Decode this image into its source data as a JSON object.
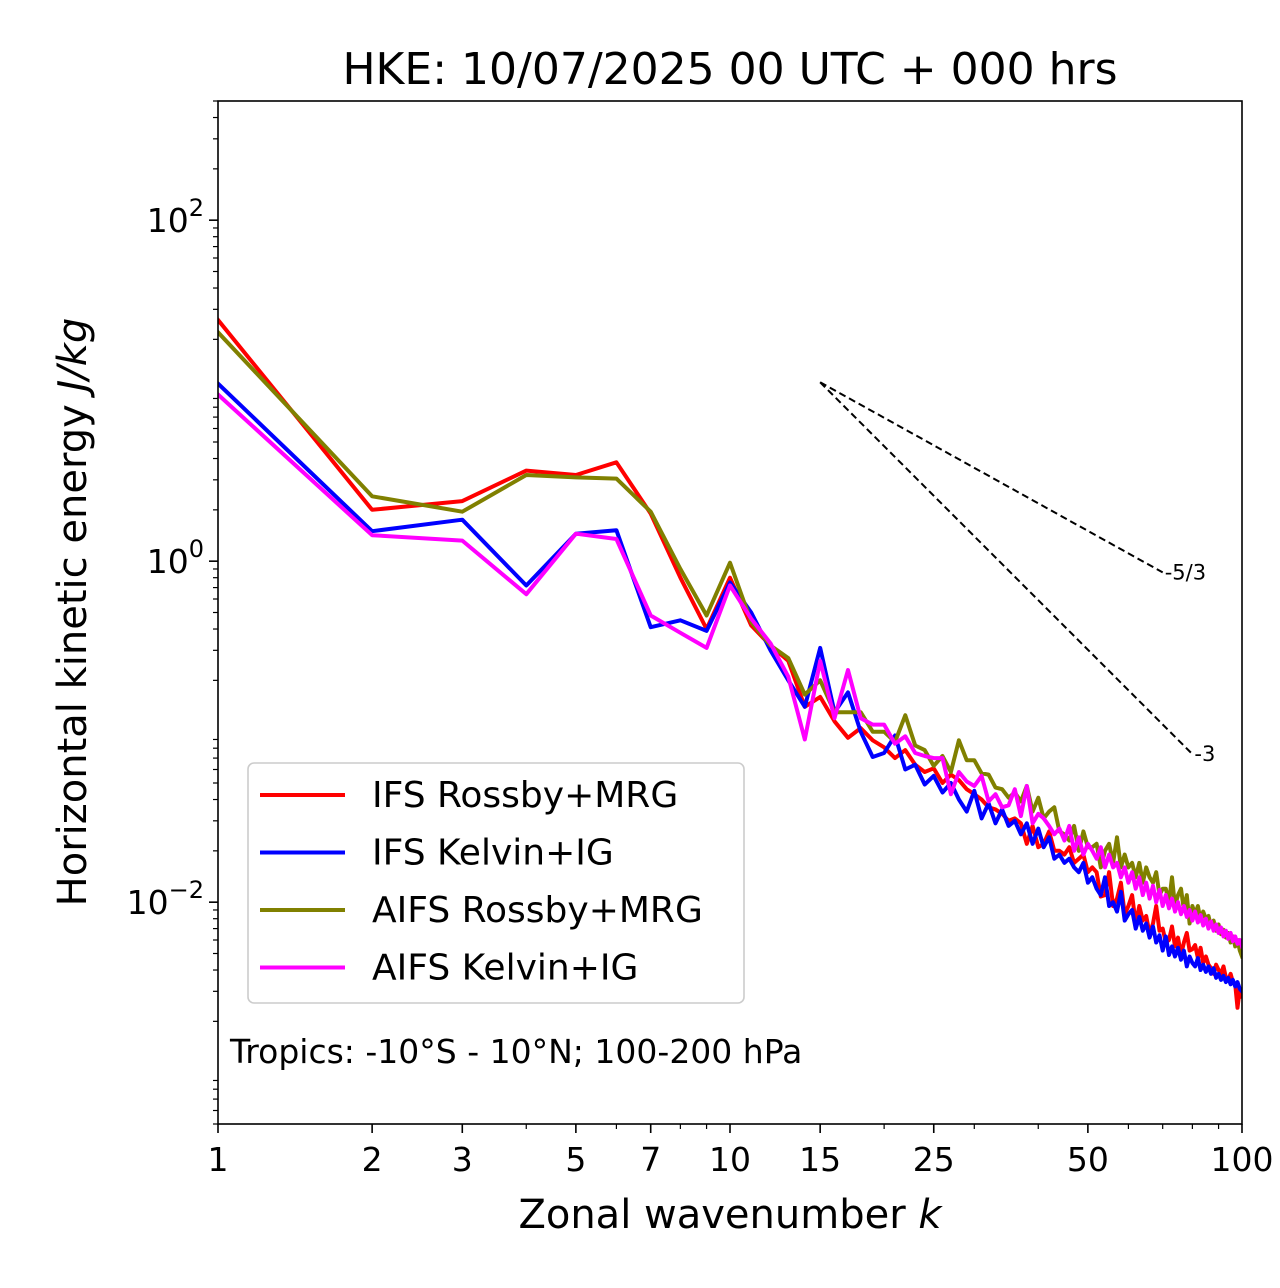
{
  "chart_data": {
    "type": "line",
    "title": "HKE: 10/07/2025 00 UTC + 000 hrs",
    "xlabel_main": "Zonal wavenumber ",
    "xlabel_var": "k",
    "ylabel_main": "Horizontal kinetic energy ",
    "ylabel_unit": "J/kg",
    "x_scale": "log",
    "y_scale": "log",
    "xlim": [
      1,
      100
    ],
    "ylim": [
      0.0005,
      500
    ],
    "x_ticks": [
      {
        "value": 1,
        "label": "1"
      },
      {
        "value": 2,
        "label": "2"
      },
      {
        "value": 3,
        "label": "3"
      },
      {
        "value": 5,
        "label": "5"
      },
      {
        "value": 7,
        "label": "7"
      },
      {
        "value": 10,
        "label": "10"
      },
      {
        "value": 15,
        "label": "15"
      },
      {
        "value": 25,
        "label": "25"
      },
      {
        "value": 50,
        "label": "50"
      },
      {
        "value": 100,
        "label": "100"
      }
    ],
    "y_ticks": [
      {
        "value": 0.01,
        "base": "10",
        "exp": "−2"
      },
      {
        "value": 1,
        "base": "10",
        "exp": "0"
      },
      {
        "value": 100,
        "base": "10",
        "exp": "2"
      }
    ],
    "annotation": "Tropics: -10°S - 10°N; 100-200 hPa",
    "legend_position": "lower-left",
    "grid": false,
    "reference_lines": [
      {
        "label": "-5/3",
        "slope": -1.6667,
        "x_start": 15,
        "y_start": 11.2,
        "x_end": 70
      },
      {
        "label": "-3",
        "slope": -3,
        "x_start": 15,
        "y_start": 11.2,
        "x_end": 80
      }
    ],
    "series": [
      {
        "name": "IFS Rossby+MRG",
        "color": "#ff0000",
        "x": [
          1,
          2,
          3,
          4,
          5,
          6,
          7,
          8,
          9,
          10,
          11,
          12,
          13,
          14,
          15,
          16,
          17,
          18,
          19,
          20,
          21,
          22,
          23,
          24,
          25,
          26,
          27,
          28,
          29,
          30,
          31,
          32,
          33,
          34,
          35,
          36,
          37,
          38,
          39,
          40,
          41,
          42,
          43,
          44,
          45,
          46,
          47,
          48,
          49,
          50,
          51,
          52,
          53,
          54,
          55,
          56,
          57,
          58,
          59,
          60,
          61,
          62,
          63,
          64,
          65,
          66,
          67,
          68,
          69,
          70,
          71,
          72,
          73,
          74,
          75,
          76,
          77,
          78,
          79,
          80,
          81,
          82,
          83,
          84,
          85,
          86,
          87,
          88,
          89,
          90,
          91,
          92,
          93,
          94,
          95,
          96,
          97,
          98,
          99,
          100
        ],
        "y": [
          26,
          2.0,
          2.25,
          3.4,
          3.2,
          3.8,
          1.9,
          0.8,
          0.4,
          0.8,
          0.42,
          0.32,
          0.26,
          0.14,
          0.16,
          0.115,
          0.092,
          0.105,
          0.089,
          0.081,
          0.07,
          0.078,
          0.064,
          0.058,
          0.061,
          0.05,
          0.056,
          0.052,
          0.046,
          0.043,
          0.04,
          0.036,
          0.035,
          0.033,
          0.03,
          0.031,
          0.029,
          0.022,
          0.028,
          0.021,
          0.022,
          0.026,
          0.02,
          0.02,
          0.019,
          0.021,
          0.017,
          0.018,
          0.019,
          0.015,
          0.016,
          0.015,
          0.0108,
          0.011,
          0.015,
          0.0095,
          0.0105,
          0.013,
          0.0085,
          0.0095,
          0.011,
          0.0075,
          0.0095,
          0.0078,
          0.0083,
          0.0065,
          0.0075,
          0.0095,
          0.0068,
          0.007,
          0.0058,
          0.006,
          0.0072,
          0.0055,
          0.0062,
          0.0049,
          0.0058,
          0.0066,
          0.0052,
          0.0053,
          0.0056,
          0.0047,
          0.0054,
          0.0044,
          0.0048,
          0.0043,
          0.0041,
          0.0038,
          0.0043,
          0.004,
          0.0038,
          0.0042,
          0.0036,
          0.0035,
          0.0038,
          0.0034,
          0.0033,
          0.0024,
          0.0031,
          0.0028
        ]
      },
      {
        "name": "IFS Kelvin+IG",
        "color": "#0000ff",
        "x": [
          1,
          2,
          3,
          4,
          5,
          6,
          7,
          8,
          9,
          10,
          11,
          12,
          13,
          14,
          15,
          16,
          17,
          18,
          19,
          20,
          21,
          22,
          23,
          24,
          25,
          26,
          27,
          28,
          29,
          30,
          31,
          32,
          33,
          34,
          35,
          36,
          37,
          38,
          39,
          40,
          41,
          42,
          43,
          44,
          45,
          46,
          47,
          48,
          49,
          50,
          51,
          52,
          53,
          54,
          55,
          56,
          57,
          58,
          59,
          60,
          61,
          62,
          63,
          64,
          65,
          66,
          67,
          68,
          69,
          70,
          71,
          72,
          73,
          74,
          75,
          76,
          77,
          78,
          79,
          80,
          81,
          82,
          83,
          84,
          85,
          86,
          87,
          88,
          89,
          90,
          91,
          92,
          93,
          94,
          95,
          96,
          97,
          98,
          99,
          100
        ],
        "y": [
          11,
          1.5,
          1.75,
          0.72,
          1.45,
          1.52,
          0.41,
          0.45,
          0.39,
          0.75,
          0.5,
          0.3,
          0.2,
          0.14,
          0.31,
          0.13,
          0.17,
          0.1,
          0.071,
          0.075,
          0.095,
          0.06,
          0.064,
          0.049,
          0.055,
          0.044,
          0.05,
          0.04,
          0.034,
          0.045,
          0.031,
          0.038,
          0.029,
          0.035,
          0.028,
          0.03,
          0.025,
          0.029,
          0.022,
          0.027,
          0.021,
          0.024,
          0.018,
          0.019,
          0.017,
          0.018,
          0.016,
          0.015,
          0.017,
          0.013,
          0.014,
          0.012,
          0.011,
          0.014,
          0.0095,
          0.01,
          0.0088,
          0.0115,
          0.0078,
          0.0085,
          0.009,
          0.007,
          0.0082,
          0.0068,
          0.0075,
          0.0062,
          0.0072,
          0.0058,
          0.0064,
          0.0052,
          0.0063,
          0.0049,
          0.0055,
          0.0048,
          0.0054,
          0.0046,
          0.0052,
          0.0042,
          0.0048,
          0.0044,
          0.0042,
          0.0047,
          0.004,
          0.0043,
          0.0039,
          0.0042,
          0.0038,
          0.0041,
          0.0036,
          0.0038,
          0.0035,
          0.0037,
          0.0034,
          0.0036,
          0.0033,
          0.0035,
          0.0032,
          0.0034,
          0.0031,
          0.003
        ]
      },
      {
        "name": "AIFS Rossby+MRG",
        "color": "#808000",
        "x": [
          1,
          2,
          3,
          4,
          5,
          6,
          7,
          8,
          9,
          10,
          11,
          12,
          13,
          14,
          15,
          16,
          17,
          18,
          19,
          20,
          21,
          22,
          23,
          24,
          25,
          26,
          27,
          28,
          29,
          30,
          31,
          32,
          33,
          34,
          35,
          36,
          37,
          38,
          39,
          40,
          41,
          42,
          43,
          44,
          45,
          46,
          47,
          48,
          49,
          50,
          51,
          52,
          53,
          54,
          55,
          56,
          57,
          58,
          59,
          60,
          61,
          62,
          63,
          64,
          65,
          66,
          67,
          68,
          69,
          70,
          71,
          72,
          73,
          74,
          75,
          76,
          77,
          78,
          79,
          80,
          81,
          82,
          83,
          84,
          85,
          86,
          87,
          88,
          89,
          90,
          91,
          92,
          93,
          94,
          95,
          96,
          97,
          98,
          99,
          100
        ],
        "y": [
          22,
          2.4,
          1.95,
          3.2,
          3.1,
          3.05,
          1.95,
          0.9,
          0.48,
          0.98,
          0.44,
          0.32,
          0.27,
          0.165,
          0.2,
          0.13,
          0.13,
          0.13,
          0.1,
          0.1,
          0.087,
          0.125,
          0.083,
          0.078,
          0.063,
          0.072,
          0.058,
          0.089,
          0.068,
          0.068,
          0.057,
          0.056,
          0.047,
          0.046,
          0.041,
          0.044,
          0.039,
          0.048,
          0.034,
          0.041,
          0.031,
          0.034,
          0.036,
          0.026,
          0.025,
          0.023,
          0.028,
          0.02,
          0.026,
          0.021,
          0.021,
          0.022,
          0.016,
          0.02,
          0.022,
          0.017,
          0.024,
          0.016,
          0.019,
          0.016,
          0.017,
          0.014,
          0.017,
          0.013,
          0.016,
          0.014,
          0.013,
          0.015,
          0.011,
          0.012,
          0.012,
          0.01,
          0.014,
          0.0095,
          0.011,
          0.012,
          0.009,
          0.011,
          0.0075,
          0.0095,
          0.0085,
          0.0095,
          0.0078,
          0.0088,
          0.008,
          0.0083,
          0.0072,
          0.0078,
          0.0068,
          0.0074,
          0.0065,
          0.0069,
          0.0062,
          0.0066,
          0.0058,
          0.0063,
          0.0055,
          0.006,
          0.0052,
          0.0048
        ]
      },
      {
        "name": "AIFS Kelvin+IG",
        "color": "#ff00ff",
        "x": [
          1,
          2,
          3,
          4,
          5,
          6,
          7,
          8,
          9,
          10,
          11,
          12,
          13,
          14,
          15,
          16,
          17,
          18,
          19,
          20,
          21,
          22,
          23,
          24,
          25,
          26,
          27,
          28,
          29,
          30,
          31,
          32,
          33,
          34,
          35,
          36,
          37,
          38,
          39,
          40,
          41,
          42,
          43,
          44,
          45,
          46,
          47,
          48,
          49,
          50,
          51,
          52,
          53,
          54,
          55,
          56,
          57,
          58,
          59,
          60,
          61,
          62,
          63,
          64,
          65,
          66,
          67,
          68,
          69,
          70,
          71,
          72,
          73,
          74,
          75,
          76,
          77,
          78,
          79,
          80,
          81,
          82,
          83,
          84,
          85,
          86,
          87,
          88,
          89,
          90,
          91,
          92,
          93,
          94,
          95,
          96,
          97,
          98,
          99,
          100
        ],
        "y": [
          9.5,
          1.42,
          1.32,
          0.64,
          1.45,
          1.35,
          0.48,
          0.38,
          0.31,
          0.72,
          0.46,
          0.33,
          0.21,
          0.09,
          0.26,
          0.12,
          0.23,
          0.12,
          0.11,
          0.11,
          0.085,
          0.094,
          0.075,
          0.072,
          0.07,
          0.07,
          0.043,
          0.058,
          0.051,
          0.048,
          0.055,
          0.039,
          0.043,
          0.036,
          0.037,
          0.046,
          0.032,
          0.048,
          0.029,
          0.033,
          0.031,
          0.028,
          0.025,
          0.027,
          0.023,
          0.028,
          0.02,
          0.024,
          0.019,
          0.022,
          0.02,
          0.018,
          0.021,
          0.016,
          0.019,
          0.016,
          0.017,
          0.014,
          0.016,
          0.013,
          0.015,
          0.012,
          0.014,
          0.011,
          0.013,
          0.0105,
          0.0125,
          0.01,
          0.0118,
          0.0095,
          0.011,
          0.0092,
          0.0105,
          0.0088,
          0.01,
          0.0085,
          0.0095,
          0.0082,
          0.009,
          0.0078,
          0.0088,
          0.0076,
          0.0084,
          0.0073,
          0.008,
          0.007,
          0.0077,
          0.0068,
          0.0074,
          0.0066,
          0.0071,
          0.0063,
          0.0068,
          0.0061,
          0.0066,
          0.0059,
          0.0063,
          0.0057,
          0.006,
          0.0055
        ]
      }
    ]
  }
}
